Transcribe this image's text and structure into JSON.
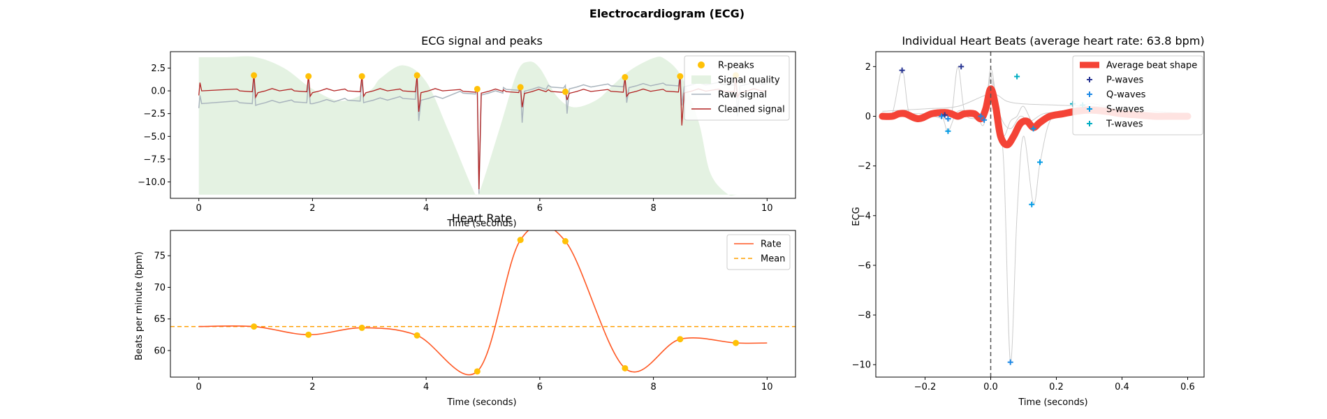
{
  "figure": {
    "title": "Electrocardiogram (ECG)"
  },
  "colors": {
    "quality_fill": "#e4f2e2",
    "raw": "#a9b4bd",
    "cleaned": "#b22222",
    "peaks": "#ffc107",
    "rate": "#ff5722",
    "mean": "#ff9f00",
    "average_beat": "#f44336",
    "beat_trace": "#cccccc",
    "p_marker": "#283593",
    "q_marker": "#1e88e5",
    "s_marker": "#039be5",
    "t_marker": "#00acc1"
  },
  "chart_data": [
    {
      "id": "ecg",
      "type": "line",
      "title": "ECG signal and peaks",
      "xlabel": "Time (seconds)",
      "ylabel": "",
      "xlim": [
        -0.5,
        10.5
      ],
      "ylim": [
        -11.8,
        4.3
      ],
      "xticks": [
        0,
        2,
        4,
        6,
        8,
        10
      ],
      "xtick_labels": [
        "0",
        "2",
        "4",
        "6",
        "8",
        "10"
      ],
      "yticks": [
        2.5,
        0.0,
        -2.5,
        -5.0,
        -7.5,
        -10.0
      ],
      "ytick_labels": [
        "2.5",
        "0.0",
        "−2.5",
        "−5.0",
        "−7.5",
        "−10.0"
      ],
      "legend": [
        "R-peaks",
        "Signal quality",
        "Raw signal",
        "Cleaned signal"
      ],
      "legend_loc": "upper right",
      "r_peaks": {
        "x": [
          0.97,
          1.93,
          2.87,
          3.84,
          4.9,
          5.66,
          6.45,
          7.5,
          8.47,
          9.45
        ],
        "y": [
          1.7,
          1.6,
          1.6,
          1.7,
          0.2,
          0.4,
          -0.1,
          1.5,
          1.6,
          1.7
        ]
      },
      "signal_quality": {
        "x": [
          0,
          0.5,
          1.0,
          1.5,
          2.0,
          2.5,
          3.0,
          3.2,
          3.6,
          4.0,
          4.4,
          4.8,
          4.9,
          5.0,
          5.3,
          5.6,
          5.8,
          6.0,
          6.3,
          6.6,
          7.0,
          7.3,
          7.6,
          8.0,
          8.2,
          8.5,
          8.8,
          9.0,
          9.3,
          9.5,
          10.0
        ],
        "y": [
          3.7,
          3.7,
          3.7,
          2.5,
          0.2,
          -1.1,
          0.0,
          1.4,
          2.8,
          1.0,
          -4.5,
          -10.5,
          -11.4,
          -10.0,
          -4.0,
          2.0,
          3.2,
          2.5,
          -0.6,
          -1.8,
          -1.0,
          0.7,
          2.3,
          3.6,
          3.5,
          1.5,
          -3.5,
          -9.0,
          -11.3,
          -11.4,
          -11.4
        ]
      },
      "raw_baseline": [
        [
          0.0,
          -1.4
        ],
        [
          1.0,
          -1.3
        ],
        [
          2.0,
          -1.2
        ],
        [
          3.0,
          -1.0
        ],
        [
          4.0,
          -0.8
        ],
        [
          4.8,
          -0.3
        ],
        [
          5.0,
          -0.2
        ],
        [
          6.0,
          0.35
        ],
        [
          7.0,
          0.5
        ],
        [
          8.0,
          0.6
        ],
        [
          9.0,
          0.7
        ],
        [
          10.0,
          0.75
        ]
      ],
      "raw_spikes": [
        {
          "t": 0.97,
          "up": 1.3,
          "down": -1.6
        },
        {
          "t": 1.93,
          "up": 1.1,
          "down": -1.4
        },
        {
          "t": 2.87,
          "up": 1.4,
          "down": -1.3
        },
        {
          "t": 3.84,
          "up": 1.4,
          "down": -3.3
        },
        {
          "t": 4.9,
          "up": 0.4,
          "down": -11.3
        },
        {
          "t": 5.66,
          "up": 0.4,
          "down": -3.5
        },
        {
          "t": 6.45,
          "up": 0.6,
          "down": -2.5
        },
        {
          "t": 7.5,
          "up": 1.4,
          "down": -1.3
        },
        {
          "t": 8.47,
          "up": 1.8,
          "down": -1.6
        },
        {
          "t": 9.45,
          "up": 1.3,
          "down": -2.8
        }
      ],
      "cleaned_spikes": [
        {
          "t": 0.97,
          "up": 1.8,
          "down": -0.7
        },
        {
          "t": 1.93,
          "up": 1.7,
          "down": -0.6
        },
        {
          "t": 2.87,
          "up": 1.7,
          "down": -0.6
        },
        {
          "t": 3.84,
          "up": 1.7,
          "down": -2.3
        },
        {
          "t": 4.9,
          "up": 0.3,
          "down": -10.8
        },
        {
          "t": 5.66,
          "up": 0.5,
          "down": -1.8
        },
        {
          "t": 6.45,
          "up": 0.1,
          "down": -1.0
        },
        {
          "t": 7.5,
          "up": 1.5,
          "down": -0.6
        },
        {
          "t": 8.47,
          "up": 1.7,
          "down": -3.8
        },
        {
          "t": 9.45,
          "up": 1.5,
          "down": -0.7
        }
      ]
    },
    {
      "id": "rate",
      "type": "line",
      "title": "Heart Rate",
      "xlabel": "Time (seconds)",
      "ylabel": "Beats per minute (bpm)",
      "xlim": [
        -0.5,
        10.5
      ],
      "ylim": [
        55.8,
        79.0
      ],
      "xticks": [
        0,
        2,
        4,
        6,
        8,
        10
      ],
      "xtick_labels": [
        "0",
        "2",
        "4",
        "6",
        "8",
        "10"
      ],
      "yticks": [
        60,
        65,
        70,
        75
      ],
      "ytick_labels": [
        "60",
        "65",
        "70",
        "75"
      ],
      "legend": [
        "Rate",
        "Mean"
      ],
      "legend_loc": "upper right",
      "mean": 63.8,
      "rate_points": {
        "x": [
          0.0,
          0.97,
          1.93,
          2.87,
          3.84,
          4.9,
          5.66,
          6.45,
          7.5,
          8.47,
          9.45,
          10.0
        ],
        "y": [
          63.8,
          63.8,
          62.5,
          63.6,
          62.4,
          56.7,
          77.5,
          77.3,
          57.2,
          61.8,
          61.2,
          61.2
        ]
      },
      "marker_indices": [
        1,
        2,
        3,
        4,
        5,
        6,
        7,
        8,
        9,
        10
      ]
    },
    {
      "id": "beats",
      "type": "line",
      "title": "Individual Heart Beats (average heart rate: 63.8 bpm)",
      "xlabel": "Time (seconds)",
      "ylabel": "ECG",
      "xlim": [
        -0.35,
        0.65
      ],
      "ylim": [
        -10.5,
        2.6
      ],
      "xticks": [
        -0.2,
        0.0,
        0.2,
        0.4,
        0.6
      ],
      "xtick_labels": [
        "−0.2",
        "0.0",
        "0.2",
        "0.4",
        "0.6"
      ],
      "yticks": [
        2,
        0,
        -2,
        -4,
        -6,
        -8,
        -10
      ],
      "ytick_labels": [
        "2",
        "0",
        "−2",
        "−4",
        "−6",
        "−8",
        "−10"
      ],
      "legend": [
        "Average beat shape",
        "P-waves",
        "Q-waves",
        "S-waves",
        "T-waves"
      ],
      "legend_loc": "upper right",
      "vline_x": 0.0,
      "average_beat": {
        "x": [
          -0.33,
          -0.3,
          -0.28,
          -0.26,
          -0.22,
          -0.18,
          -0.14,
          -0.12,
          -0.1,
          -0.08,
          -0.05,
          -0.03,
          -0.015,
          0.0,
          0.015,
          0.03,
          0.05,
          0.07,
          0.09,
          0.11,
          0.13,
          0.15,
          0.18,
          0.22,
          0.26,
          0.3,
          0.35,
          0.4,
          0.45,
          0.5,
          0.55,
          0.6
        ],
        "y": [
          0.0,
          0.0,
          0.1,
          0.1,
          -0.1,
          0.1,
          0.15,
          0.1,
          0.0,
          0.1,
          0.1,
          -0.1,
          0.3,
          1.1,
          0.4,
          -0.8,
          -1.15,
          -0.8,
          -0.3,
          -0.2,
          -0.45,
          -0.25,
          0.0,
          0.1,
          0.2,
          0.25,
          0.2,
          0.1,
          0.05,
          0.0,
          0.0,
          0.0
        ]
      },
      "beat_traces": [
        {
          "x": [
            -0.33,
            -0.3,
            -0.27,
            -0.25,
            -0.22,
            -0.18,
            -0.14,
            -0.12,
            -0.1,
            -0.08,
            -0.05,
            -0.02,
            0.0,
            0.02,
            0.04,
            0.06,
            0.08,
            0.1,
            0.13,
            0.16,
            0.2,
            0.25,
            0.3,
            0.35,
            0.4,
            0.5,
            0.6
          ],
          "y": [
            0.0,
            0.1,
            1.85,
            0.2,
            -0.1,
            0.0,
            -0.1,
            0.0,
            2.0,
            0.2,
            -0.1,
            0.0,
            1.5,
            -0.3,
            -0.8,
            -0.2,
            0.0,
            0.4,
            -0.3,
            -0.1,
            0.1,
            0.3,
            0.5,
            0.4,
            0.2,
            0.1,
            0.0
          ]
        },
        {
          "x": [
            -0.33,
            -0.25,
            -0.18,
            -0.12,
            -0.05,
            -0.02,
            0.0,
            0.02,
            0.04,
            0.06,
            0.08,
            0.1,
            0.13,
            0.15,
            0.18,
            0.22,
            0.28,
            0.35,
            0.45,
            0.6
          ],
          "y": [
            0.05,
            0.0,
            0.05,
            0.05,
            0.1,
            -0.3,
            1.9,
            0.2,
            -2.0,
            -9.9,
            -4.0,
            -0.8,
            -3.5,
            -1.9,
            -0.2,
            0.0,
            0.2,
            0.1,
            0.05,
            0.0
          ]
        },
        {
          "x": [
            -0.33,
            -0.2,
            -0.15,
            -0.13,
            -0.1,
            -0.05,
            -0.02,
            0.0,
            0.03,
            0.06,
            0.09,
            0.12,
            0.16,
            0.22,
            0.3,
            0.4,
            0.5,
            0.6
          ],
          "y": [
            0.1,
            0.1,
            0.0,
            -0.6,
            0.2,
            0.1,
            0.0,
            1.6,
            0.0,
            -0.5,
            0.0,
            -0.2,
            0.1,
            0.2,
            0.4,
            0.3,
            0.1,
            0.0
          ]
        },
        {
          "x": [
            -0.33,
            -0.2,
            -0.1,
            0.0,
            0.05,
            0.1,
            0.2,
            0.3,
            0.4,
            0.5,
            0.6
          ],
          "y": [
            0.2,
            0.3,
            0.4,
            0.9,
            0.6,
            0.5,
            0.45,
            0.4,
            0.3,
            0.2,
            0.1
          ]
        }
      ],
      "p_waves": {
        "x": [
          -0.27,
          -0.09,
          -0.15,
          -0.14
        ],
        "y": [
          1.85,
          2.0,
          0.0,
          0.05
        ]
      },
      "q_waves": {
        "x": [
          -0.15,
          -0.13,
          -0.02,
          -0.03,
          0.06
        ],
        "y": [
          0.0,
          -0.1,
          -0.15,
          0.0,
          -9.9
        ]
      },
      "s_waves": {
        "x": [
          -0.13,
          0.125,
          0.15,
          0.13
        ],
        "y": [
          -0.6,
          -3.55,
          -1.85,
          -0.5
        ]
      },
      "t_waves": {
        "x": [
          0.08,
          0.25,
          0.28
        ],
        "y": [
          1.6,
          0.5,
          0.45
        ]
      }
    }
  ]
}
